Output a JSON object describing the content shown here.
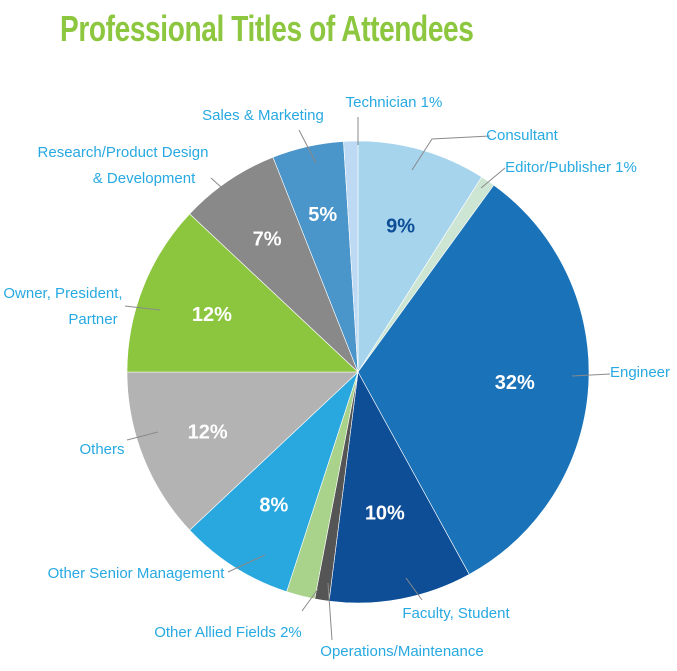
{
  "chart_data": {
    "type": "pie",
    "title": "Professional Titles of Attendees",
    "title_color": "#8dc63f",
    "label_color": "#27a9e1",
    "slices": [
      {
        "label": "Consultant",
        "value_label": "9%",
        "value": 9,
        "color": "#a6d4ec"
      },
      {
        "label": "Editor/Publisher 1%",
        "value_label": "",
        "value": 1,
        "color": "#cde6d3"
      },
      {
        "label": "Engineer",
        "value_label": "32%",
        "value": 32,
        "color": "#1a72b9"
      },
      {
        "label": "Faculty, Student",
        "value_label": "10%",
        "value": 10,
        "color": "#0d4e97"
      },
      {
        "label": "Operations/Maintenance",
        "value_label": "",
        "value": 1,
        "color": "#555555"
      },
      {
        "label": "Other Allied Fields 2%",
        "value_label": "",
        "value": 2,
        "color": "#a9d38b"
      },
      {
        "label": "Other Senior Management",
        "value_label": "8%",
        "value": 8,
        "color": "#29a8df"
      },
      {
        "label": "Others",
        "value_label": "12%",
        "value": 12,
        "color": "#b3b3b3"
      },
      {
        "label": "Owner, President, Partner",
        "value_label": "12%",
        "value": 12,
        "color": "#8cc63f"
      },
      {
        "label": "Research/Product Design & Development",
        "value_label": "7%",
        "value": 7,
        "color": "#898989"
      },
      {
        "label": "Sales & Marketing",
        "value_label": "5%",
        "value": 5,
        "color": "#4a95c9"
      },
      {
        "label": "Technician 1%",
        "value_label": "",
        "value": 1,
        "color": "#bdd9f3"
      }
    ]
  }
}
